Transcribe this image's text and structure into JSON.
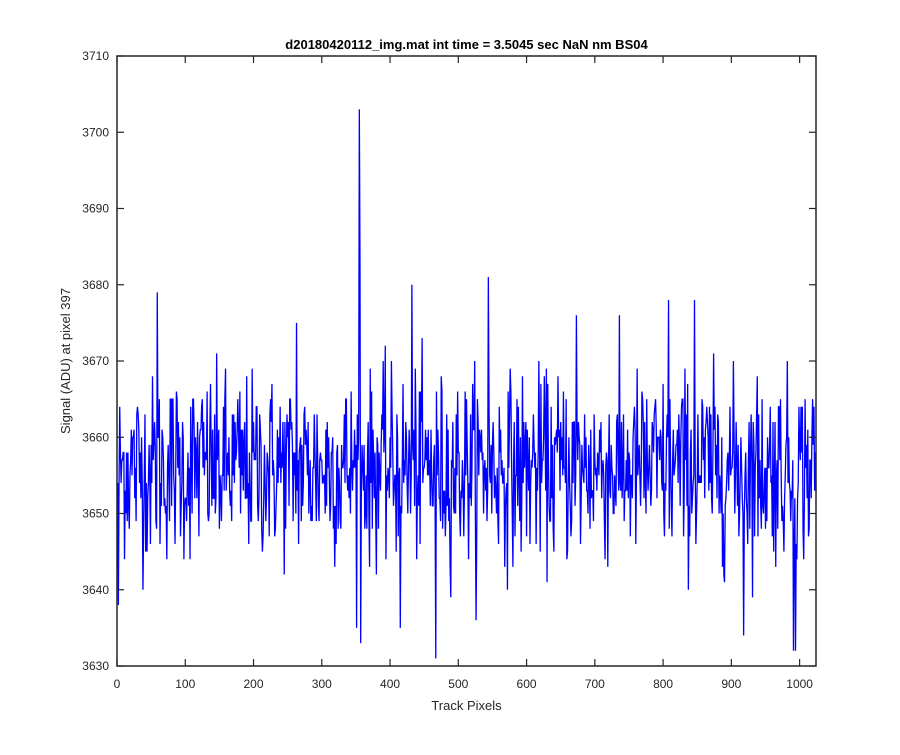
{
  "chart_data": {
    "type": "line",
    "title": "d20180420112_img.mat int time = 3.5045 sec  NaN nm BS04",
    "xlabel": "Track Pixels",
    "ylabel": "Signal (ADU) at pixel 397",
    "xlim": [
      0,
      1024
    ],
    "ylim": [
      3630,
      3710
    ],
    "xticks": [
      0,
      100,
      200,
      300,
      400,
      500,
      600,
      700,
      800,
      900,
      1000
    ],
    "yticks": [
      3630,
      3640,
      3650,
      3660,
      3670,
      3680,
      3690,
      3700,
      3710
    ],
    "grid": false,
    "legend": "none",
    "line_color": "#0000ff",
    "series": [
      {
        "noise_model": {
          "n_points": 1024,
          "mean": 3656,
          "std": 6,
          "range": [
            3631,
            3703
          ],
          "notable_points": [
            {
              "x": 354,
              "y": 3703
            },
            {
              "x": 355,
              "y": 3682
            },
            {
              "x": 356,
              "y": 3633
            },
            {
              "x": 466,
              "y": 3631
            },
            {
              "x": 543,
              "y": 3681
            },
            {
              "x": 431,
              "y": 3680
            },
            {
              "x": 58,
              "y": 3679
            },
            {
              "x": 990,
              "y": 3632
            },
            {
              "x": 993,
              "y": 3632
            },
            {
              "x": 807,
              "y": 3678
            },
            {
              "x": 845,
              "y": 3678
            },
            {
              "x": 672,
              "y": 3676
            },
            {
              "x": 262,
              "y": 3675
            },
            {
              "x": 917,
              "y": 3634
            },
            {
              "x": 414,
              "y": 3635
            },
            {
              "x": 1,
              "y": 3638
            }
          ]
        }
      }
    ]
  }
}
